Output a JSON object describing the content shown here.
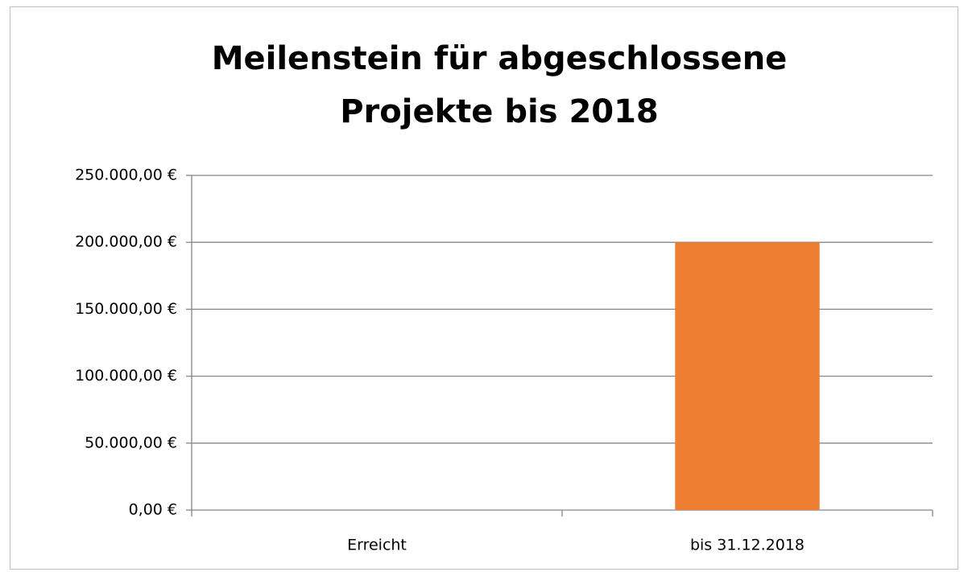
{
  "chart_data": {
    "type": "bar",
    "title": "Meilenstein für abgeschlossene Projekte bis 2018",
    "categories": [
      "Erreicht",
      "bis 31.12.2018"
    ],
    "values": [
      0,
      200000
    ],
    "color": "#ed7d31",
    "ylim": [
      0,
      250000
    ],
    "yticks": [
      {
        "value": 0,
        "label": "0,00 €"
      },
      {
        "value": 50000,
        "label": "50.000,00 €"
      },
      {
        "value": 100000,
        "label": "100.000,00 €"
      },
      {
        "value": 150000,
        "label": "150.000,00 €"
      },
      {
        "value": 200000,
        "label": "200.000,00 €"
      },
      {
        "value": 250000,
        "label": "250.000,00 €"
      }
    ],
    "grid": true
  }
}
